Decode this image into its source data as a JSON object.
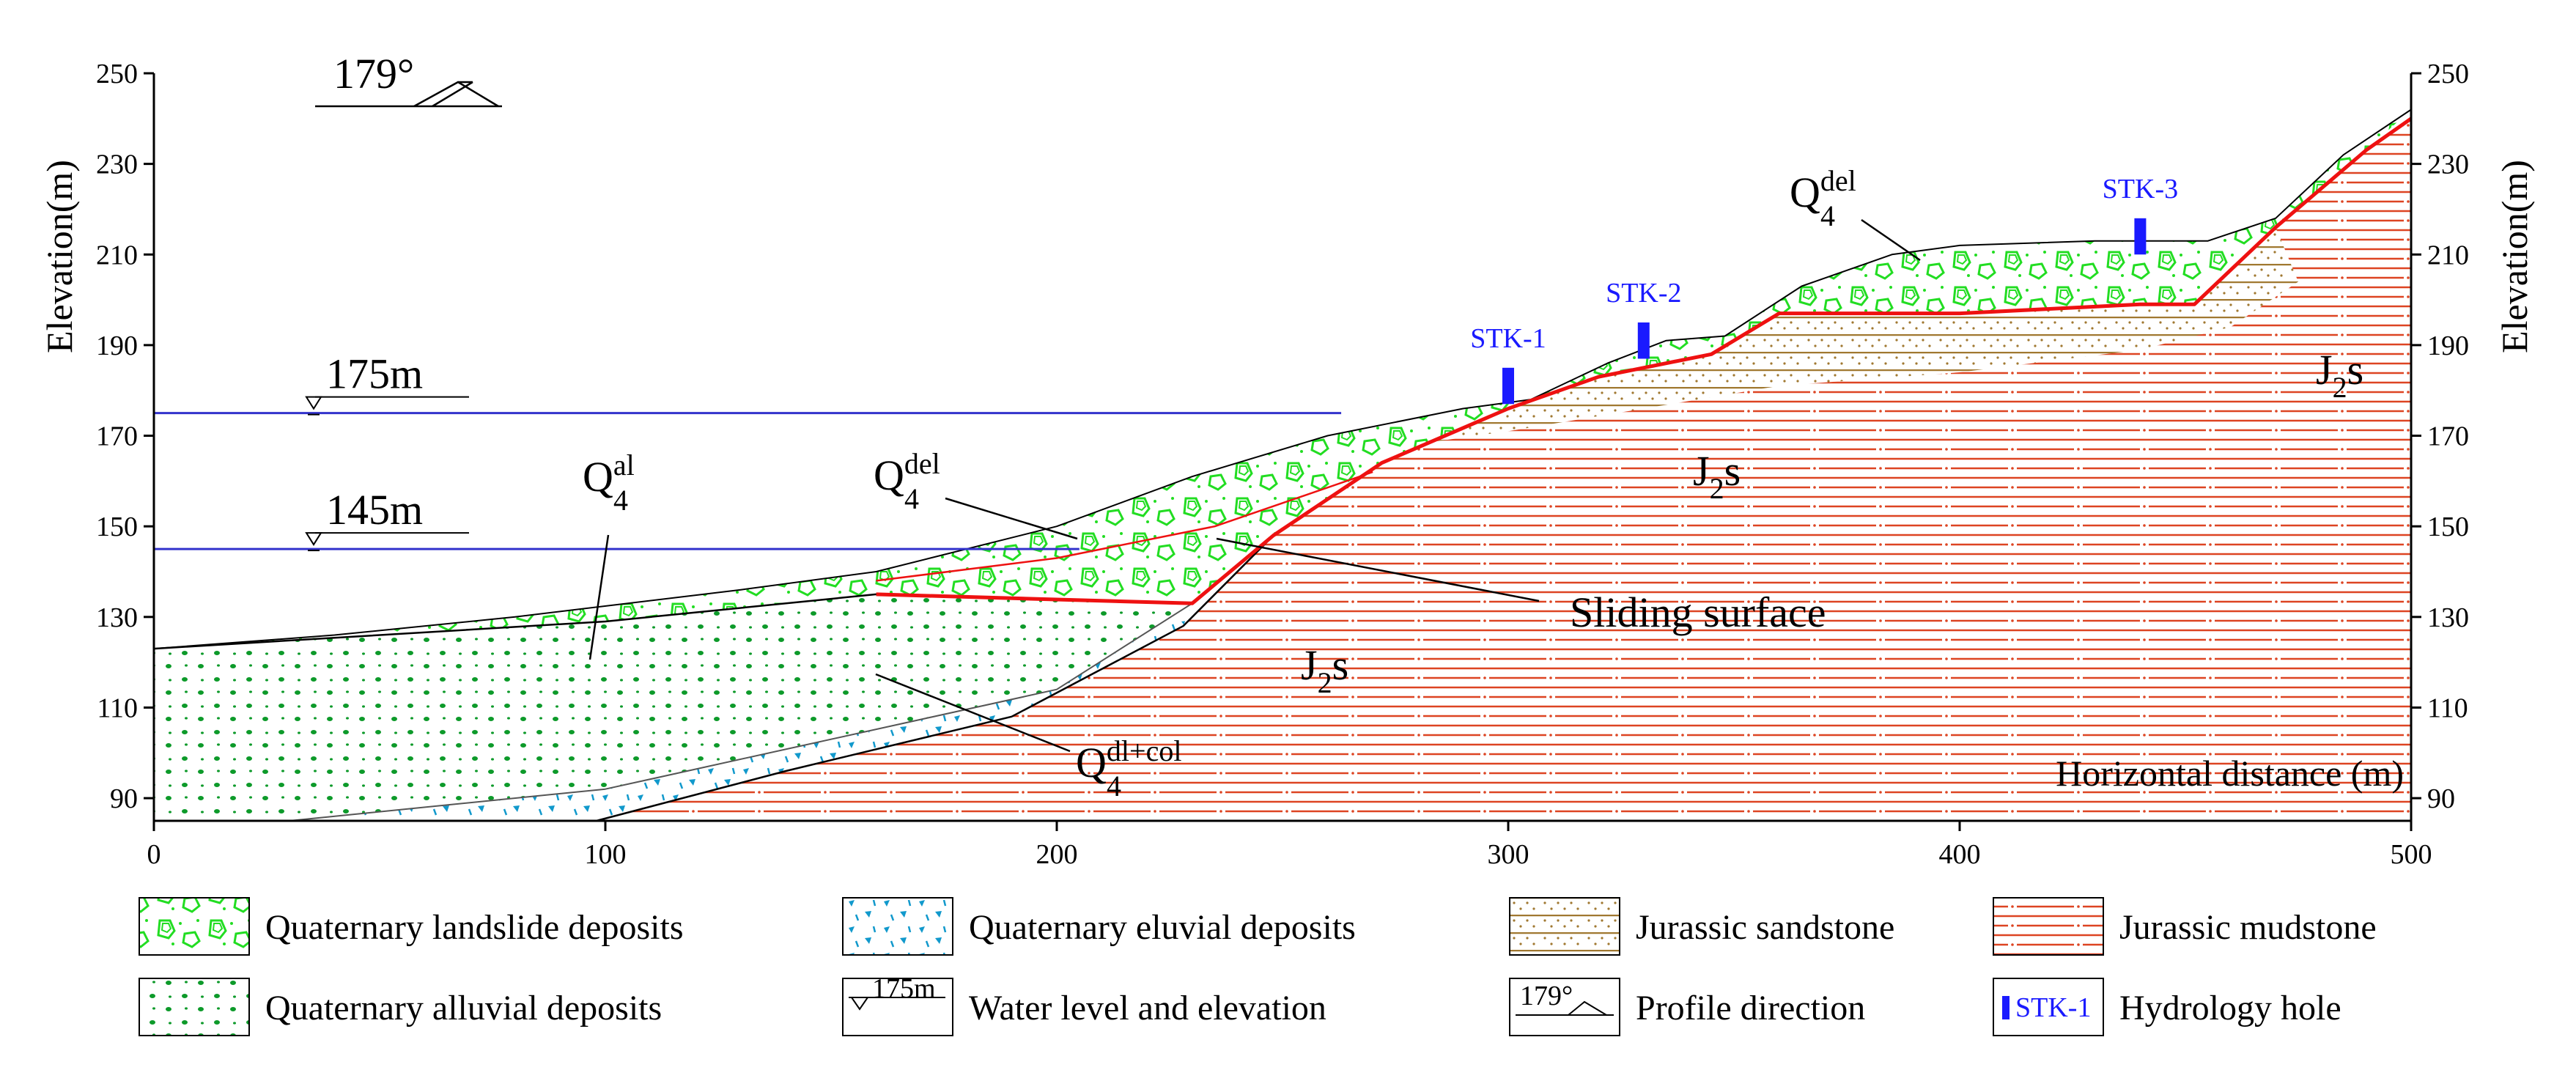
{
  "axes": {
    "y_title_left": "Elevation(m)",
    "y_title_right": "Elevation(m)",
    "x_title": "Horizontal distance (m)",
    "x_ticks": [
      "0",
      "100",
      "200",
      "300",
      "400",
      "500"
    ],
    "y_ticks": [
      "250",
      "230",
      "210",
      "190",
      "170",
      "150",
      "130",
      "110",
      "90"
    ]
  },
  "profile_direction": {
    "label": "179°"
  },
  "water_levels": [
    {
      "label": "175m",
      "elevation": 175
    },
    {
      "label": "145m",
      "elevation": 145
    }
  ],
  "hydrology_holes": [
    {
      "label": "STK-1",
      "distance": 300
    },
    {
      "label": "STK-2",
      "distance": 330
    },
    {
      "label": "STK-3",
      "distance": 440
    }
  ],
  "unit_labels": {
    "q4_al": {
      "base": "Q",
      "sub": "4",
      "sup": "al"
    },
    "q4_del_lower": {
      "base": "Q",
      "sub": "4",
      "sup": "del"
    },
    "q4_del_upper": {
      "base": "Q",
      "sub": "4",
      "sup": "del"
    },
    "q4_dlcol": {
      "base": "Q",
      "sub": "4",
      "sup": "dl+col"
    },
    "j2s_lower": {
      "base": "J",
      "sub": "2",
      "tail": "s"
    },
    "j2s_mid": {
      "base": "J",
      "sub": "2",
      "tail": "s"
    },
    "j2s_right": {
      "base": "J",
      "sub": "2",
      "tail": "s"
    },
    "sliding_surface": "Sliding surface"
  },
  "legend": [
    {
      "label": "Quaternary landslide deposits",
      "icon": "landslide-pattern"
    },
    {
      "label": "Quaternary eluvial deposits",
      "icon": "eluvial-pattern"
    },
    {
      "label": "Jurassic sandstone",
      "icon": "sandstone-pattern"
    },
    {
      "label": "Jurassic mudstone",
      "icon": "mudstone-pattern"
    },
    {
      "label": "Quaternary alluvial deposits",
      "icon": "alluvial-pattern"
    },
    {
      "label": "Water level and elevation",
      "icon": "water-level-icon",
      "icon_text": "175m"
    },
    {
      "label": "Profile direction",
      "icon": "profile-direction-icon",
      "icon_text": "179°"
    },
    {
      "label": "Hydrology hole",
      "icon": "hydrology-hole-icon",
      "icon_text": "STK-1"
    }
  ],
  "colors": {
    "landslide": "#22dd22",
    "alluvial": "#11aa33",
    "eluvial": "#1199cc",
    "sandstone": "#a07830",
    "mudstone": "#dd4422",
    "water_line": "#3333cc",
    "sliding_line": "#ee1111",
    "hole": "#1a1aff"
  }
}
